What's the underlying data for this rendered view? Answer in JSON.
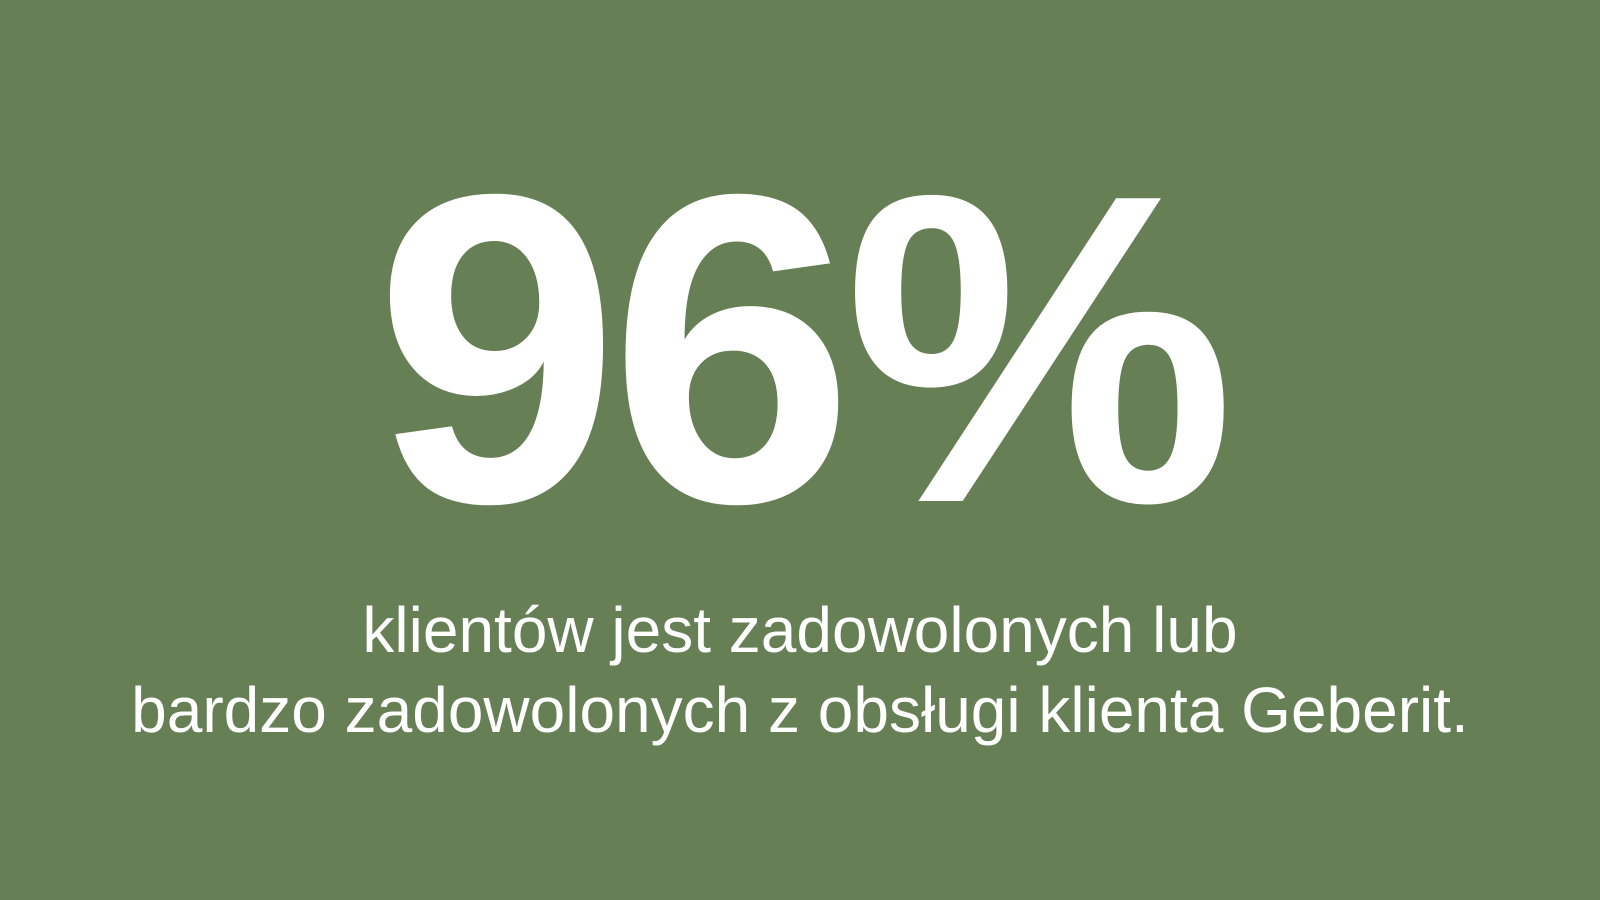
{
  "stat": {
    "value": "96%",
    "line1": "klientów jest zadowolonych lub",
    "line2": "bardzo zadowolonych z obsługi klienta Geberit."
  },
  "colors": {
    "background": "#667f55",
    "text": "#ffffff"
  }
}
